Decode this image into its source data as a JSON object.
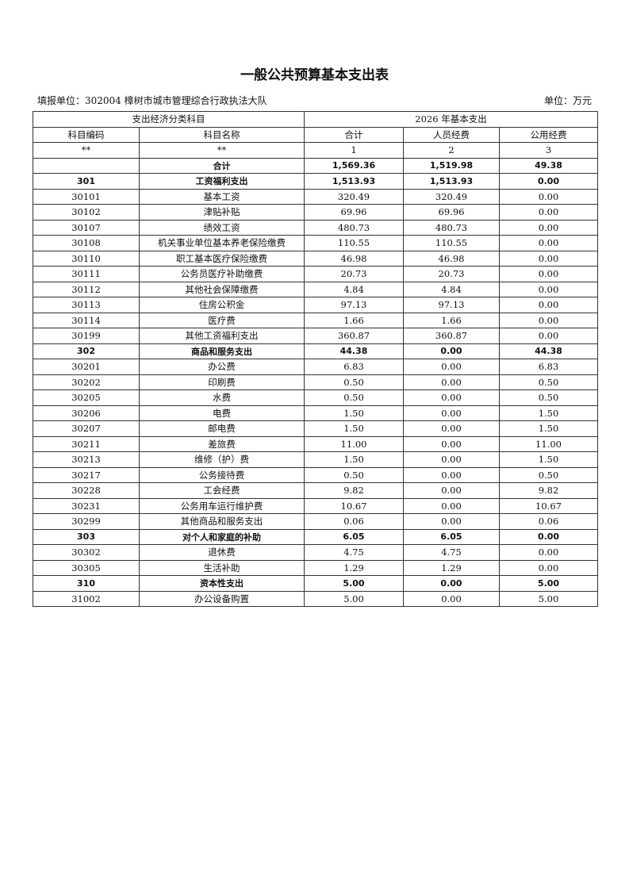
{
  "title": "一般公共预算基本支出表",
  "unit_left": "填报单位：302004 樟树市城市管理综合行政执法大队",
  "unit_right": "单位：万元",
  "header": {
    "group1": "支出经济分类科目",
    "group2": "2026 年基本支出",
    "cols": [
      "科目编码",
      "科目名称",
      "合计",
      "人员经费",
      "公用经费"
    ],
    "index": [
      "**",
      "**",
      "1",
      "2",
      "3"
    ]
  },
  "rows": [
    {
      "bold": true,
      "cells": [
        "",
        "合计",
        "1,569.36",
        "1,519.98",
        "49.38"
      ]
    },
    {
      "bold": true,
      "cells": [
        "301",
        "工资福利支出",
        "1,513.93",
        "1,513.93",
        "0.00"
      ]
    },
    {
      "bold": false,
      "cells": [
        "30101",
        "基本工资",
        "320.49",
        "320.49",
        "0.00"
      ]
    },
    {
      "bold": false,
      "cells": [
        "30102",
        "津贴补贴",
        "69.96",
        "69.96",
        "0.00"
      ]
    },
    {
      "bold": false,
      "cells": [
        "30107",
        "绩效工资",
        "480.73",
        "480.73",
        "0.00"
      ]
    },
    {
      "bold": false,
      "cells": [
        "30108",
        "机关事业单位基本养老保险缴费",
        "110.55",
        "110.55",
        "0.00"
      ]
    },
    {
      "bold": false,
      "cells": [
        "30110",
        "职工基本医疗保险缴费",
        "46.98",
        "46.98",
        "0.00"
      ]
    },
    {
      "bold": false,
      "cells": [
        "30111",
        "公务员医疗补助缴费",
        "20.73",
        "20.73",
        "0.00"
      ]
    },
    {
      "bold": false,
      "cells": [
        "30112",
        "其他社会保障缴费",
        "4.84",
        "4.84",
        "0.00"
      ]
    },
    {
      "bold": false,
      "cells": [
        "30113",
        "住房公积金",
        "97.13",
        "97.13",
        "0.00"
      ]
    },
    {
      "bold": false,
      "cells": [
        "30114",
        "医疗费",
        "1.66",
        "1.66",
        "0.00"
      ]
    },
    {
      "bold": false,
      "cells": [
        "30199",
        "其他工资福利支出",
        "360.87",
        "360.87",
        "0.00"
      ]
    },
    {
      "bold": true,
      "cells": [
        "302",
        "商品和服务支出",
        "44.38",
        "0.00",
        "44.38"
      ]
    },
    {
      "bold": false,
      "cells": [
        "30201",
        "办公费",
        "6.83",
        "0.00",
        "6.83"
      ]
    },
    {
      "bold": false,
      "cells": [
        "30202",
        "印刷费",
        "0.50",
        "0.00",
        "0.50"
      ]
    },
    {
      "bold": false,
      "cells": [
        "30205",
        "水费",
        "0.50",
        "0.00",
        "0.50"
      ]
    },
    {
      "bold": false,
      "cells": [
        "30206",
        "电费",
        "1.50",
        "0.00",
        "1.50"
      ]
    },
    {
      "bold": false,
      "cells": [
        "30207",
        "邮电费",
        "1.50",
        "0.00",
        "1.50"
      ]
    },
    {
      "bold": false,
      "cells": [
        "30211",
        "差旅费",
        "11.00",
        "0.00",
        "11.00"
      ]
    },
    {
      "bold": false,
      "cells": [
        "30213",
        "维修（护）费",
        "1.50",
        "0.00",
        "1.50"
      ]
    },
    {
      "bold": false,
      "cells": [
        "30217",
        "公务接待费",
        "0.50",
        "0.00",
        "0.50"
      ]
    },
    {
      "bold": false,
      "cells": [
        "30228",
        "工会经费",
        "9.82",
        "0.00",
        "9.82"
      ]
    },
    {
      "bold": false,
      "cells": [
        "30231",
        "公务用车运行维护费",
        "10.67",
        "0.00",
        "10.67"
      ]
    },
    {
      "bold": false,
      "cells": [
        "30299",
        "其他商品和服务支出",
        "0.06",
        "0.00",
        "0.06"
      ]
    },
    {
      "bold": true,
      "cells": [
        "303",
        "对个人和家庭的补助",
        "6.05",
        "6.05",
        "0.00"
      ]
    },
    {
      "bold": false,
      "cells": [
        "30302",
        "退休费",
        "4.75",
        "4.75",
        "0.00"
      ]
    },
    {
      "bold": false,
      "cells": [
        "30305",
        "生活补助",
        "1.29",
        "1.29",
        "0.00"
      ]
    },
    {
      "bold": true,
      "cells": [
        "310",
        "资本性支出",
        "5.00",
        "0.00",
        "5.00"
      ]
    },
    {
      "bold": false,
      "cells": [
        "31002",
        "办公设备购置",
        "5.00",
        "0.00",
        "5.00"
      ]
    }
  ]
}
